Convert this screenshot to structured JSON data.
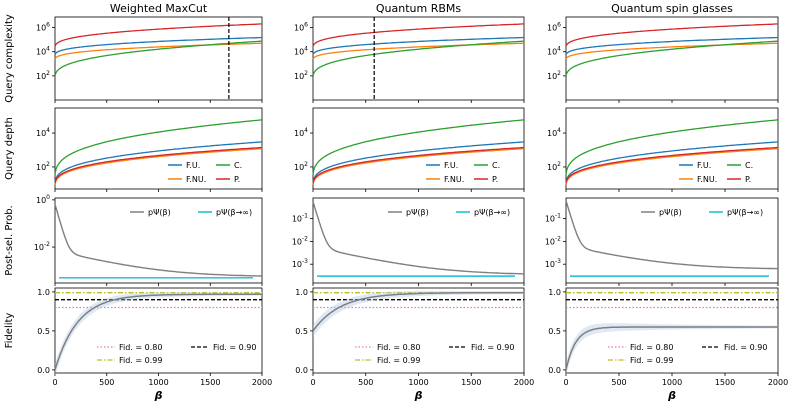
{
  "chart_data": {
    "type": "line",
    "column_titles": [
      "Weighted MaxCut",
      "Quantum RBMs",
      "Quantum spin glasses"
    ],
    "row_labels": [
      "Query complexity",
      "Query depth",
      "Post-sel. Prob.",
      "Fidelity"
    ],
    "xlabel": "β",
    "x_ticks": [
      0,
      500,
      1000,
      1500,
      2000
    ],
    "xlim": [
      0,
      2000
    ],
    "series_colors": {
      "F.U.": "#1f77b4",
      "F.NU.": "#ff7f0e",
      "C.": "#2ca02c",
      "P.": "#d62728",
      "p_beta": "#7f7f7f",
      "p_inf": "#17becf",
      "fid_080": "#e377c2",
      "fid_090": "#000000",
      "fid_099": "#bcbd22",
      "fidelity": "#7f7f7f"
    },
    "query_complexity": {
      "scale": "log",
      "y_ticks": [
        "10^2",
        "10^4",
        "10^6"
      ],
      "ylim": [
        1,
        7500000
      ],
      "series": [
        {
          "name": "F.U.",
          "values_at_2000": 150000
        },
        {
          "name": "F.NU.",
          "values_at_2000": 50000
        },
        {
          "name": "C.",
          "values_at_2000": 75000
        },
        {
          "name": "P.",
          "values_at_2000": 2000000
        }
      ],
      "vline_x": [
        1680,
        580,
        null
      ]
    },
    "query_depth": {
      "scale": "log",
      "y_ticks": [
        "10^2",
        "10^4"
      ],
      "ylim": [
        5,
        300000
      ],
      "legend": [
        "F.U.",
        "C.",
        "F.NU.",
        "P."
      ],
      "series": [
        {
          "name": "F.U.",
          "values_at_2000": 3000
        },
        {
          "name": "F.NU.",
          "values_at_2000": 1200
        },
        {
          "name": "C.",
          "values_at_2000": 60000
        },
        {
          "name": "P.",
          "values_at_2000": 1400
        }
      ]
    },
    "post_selection": {
      "scale": "log",
      "legend_left": "pΨ(β)",
      "legend_right": "pΨ(β→∞)",
      "panels": [
        {
          "y_ticks": [
            "10^0",
            "10^-2"
          ],
          "ylim": [
            0.0003,
            1.2
          ],
          "start": 0.65,
          "end": 0.00055,
          "asymptote": 0.0005
        },
        {
          "y_ticks": [
            "10^-1",
            "10^-2",
            "10^-3"
          ],
          "ylim": [
            0.00015,
            0.8
          ],
          "start": 0.55,
          "end": 0.00034,
          "asymptote": 0.0003
        },
        {
          "y_ticks": [
            "10^-1",
            "10^-2",
            "10^-3"
          ],
          "ylim": [
            0.00015,
            0.8
          ],
          "start": 0.6,
          "end": 0.0006,
          "asymptote": 0.0003
        }
      ]
    },
    "fidelity": {
      "y_ticks": [
        "0.0",
        "0.5",
        "1.0"
      ],
      "ylim": [
        -0.04,
        1.05
      ],
      "thresholds": [
        0.8,
        0.9,
        0.99
      ],
      "legend": [
        "Fid. = 0.80",
        "Fid. = 0.90",
        "Fid. = 0.99"
      ],
      "curves": [
        {
          "start": 0.0,
          "end": 0.97,
          "x_half": 220
        },
        {
          "start": 0.5,
          "end": 0.99,
          "x_half": 260
        },
        {
          "start": 0.0,
          "end": 0.55,
          "x_half": 90
        }
      ]
    }
  }
}
